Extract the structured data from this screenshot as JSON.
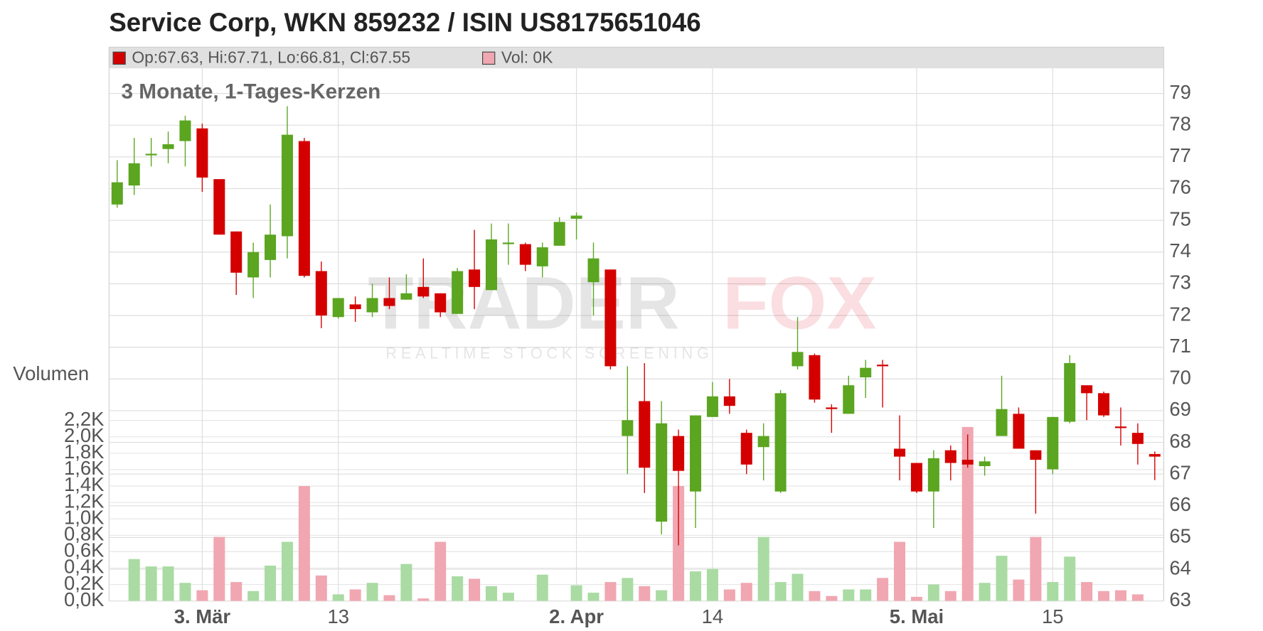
{
  "chart_data": {
    "type": "candlestick",
    "title": "Service Corp, WKN 859232 / ISIN US8175651046",
    "subtitle": "3 Monate, 1-Tages-Kerzen",
    "legend": {
      "ohlc": "Op:67.63, Hi:67.71, Lo:66.81, Cl:67.55",
      "volume": "Vol: 0K"
    },
    "volume_label": "Volumen",
    "watermark": {
      "brand_a": "TRADER",
      "brand_b": "FOX",
      "tagline": "REALTIME STOCK SCREENING"
    },
    "categories": [
      null,
      null,
      null,
      null,
      null,
      "3. Mär",
      null,
      null,
      null,
      null,
      null,
      null,
      null,
      "13",
      null,
      null,
      null,
      null,
      null,
      null,
      null,
      null,
      null,
      null,
      null,
      null,
      null,
      "2. Apr",
      null,
      null,
      null,
      null,
      null,
      null,
      null,
      "14",
      null,
      null,
      null,
      null,
      null,
      null,
      null,
      null,
      null,
      null,
      null,
      "5. Mai",
      null,
      null,
      null,
      null,
      null,
      null,
      null,
      "15",
      null,
      null,
      null,
      null,
      null,
      null
    ],
    "open": [
      75.5,
      76.1,
      77.05,
      77.25,
      77.5,
      77.9,
      76.3,
      74.65,
      73.2,
      73.75,
      74.5,
      77.5,
      73.4,
      71.95,
      72.35,
      72.1,
      72.55,
      72.5,
      72.9,
      72.7,
      72.05,
      73.45,
      72.8,
      74.25,
      74.25,
      73.55,
      74.2,
      75.05,
      73.05,
      73.45,
      68.2,
      69.3,
      65.5,
      68.2,
      66.45,
      68.8,
      69.45,
      68.3,
      67.85,
      66.45,
      70.4,
      70.75,
      69.1,
      68.9,
      70.05,
      70.45,
      67.8,
      67.35,
      66.45,
      67.75,
      67.45,
      67.25,
      68.2,
      68.9,
      67.75,
      67.15,
      68.65,
      69.8,
      69.55,
      68.5,
      68.3,
      67.63
    ],
    "high": [
      76.9,
      77.6,
      77.6,
      77.8,
      78.3,
      78.05,
      76.3,
      74.65,
      74.3,
      75.5,
      78.6,
      77.6,
      73.7,
      72.55,
      72.6,
      73.0,
      73.2,
      73.3,
      73.8,
      72.7,
      73.5,
      74.7,
      74.9,
      74.9,
      74.3,
      74.3,
      75.1,
      75.25,
      74.3,
      73.45,
      70.4,
      70.5,
      69.3,
      68.4,
      68.85,
      69.9,
      70.0,
      68.4,
      68.6,
      69.65,
      71.95,
      70.8,
      69.2,
      70.1,
      70.6,
      70.6,
      68.85,
      67.35,
      67.75,
      67.9,
      68.25,
      67.55,
      70.1,
      69.1,
      67.75,
      68.8,
      70.75,
      69.8,
      69.6,
      69.1,
      68.6,
      67.71
    ],
    "low": [
      75.4,
      75.8,
      76.7,
      76.8,
      76.7,
      75.9,
      74.55,
      72.65,
      72.55,
      73.2,
      73.8,
      73.2,
      71.6,
      71.9,
      71.8,
      71.95,
      72.2,
      72.5,
      72.55,
      71.95,
      72.05,
      72.2,
      72.8,
      73.6,
      73.4,
      73.2,
      74.2,
      74.4,
      72.0,
      70.3,
      67.0,
      66.4,
      65.1,
      64.75,
      65.3,
      68.8,
      68.9,
      67.0,
      66.8,
      66.4,
      70.3,
      69.25,
      68.3,
      68.9,
      69.4,
      69.1,
      66.8,
      66.4,
      65.3,
      66.8,
      67.2,
      66.95,
      68.2,
      67.8,
      65.75,
      67.0,
      68.6,
      68.7,
      68.8,
      67.9,
      67.3,
      66.81
    ],
    "close": [
      76.2,
      76.8,
      77.1,
      77.4,
      78.15,
      76.35,
      74.55,
      73.35,
      74.0,
      74.55,
      77.7,
      73.25,
      72.0,
      72.55,
      72.2,
      72.55,
      72.3,
      72.7,
      72.6,
      72.1,
      73.4,
      72.9,
      74.4,
      74.3,
      73.6,
      74.15,
      74.95,
      75.15,
      73.8,
      70.4,
      68.7,
      67.2,
      68.6,
      67.1,
      68.85,
      69.45,
      69.15,
      67.3,
      68.2,
      69.55,
      70.85,
      69.35,
      69.05,
      69.8,
      70.35,
      70.4,
      67.55,
      66.45,
      67.5,
      67.35,
      67.3,
      67.4,
      69.05,
      67.8,
      67.45,
      68.8,
      70.5,
      69.55,
      68.85,
      68.45,
      67.95,
      67.55
    ],
    "volume": [
      0,
      0.51,
      0.42,
      0.42,
      0.22,
      0.13,
      0.78,
      0.23,
      0.12,
      0.43,
      0.72,
      1.4,
      0.31,
      0.08,
      0.14,
      0.22,
      0.07,
      0.45,
      0.03,
      0.72,
      0.3,
      0.27,
      0.18,
      0.1,
      0,
      0.32,
      0,
      0.19,
      0.1,
      0.23,
      0.28,
      0.18,
      0.13,
      1.4,
      0.36,
      0.39,
      0.14,
      0.22,
      0.78,
      0.23,
      0.33,
      0.12,
      0.06,
      0.14,
      0.14,
      0.28,
      0.72,
      0.05,
      0.2,
      0.12,
      2.12,
      0.22,
      0.55,
      0.26,
      0.78,
      0.23,
      0.54,
      0.23,
      0.12,
      0.13,
      0.08,
      0
    ],
    "ylim": [
      63,
      79
    ],
    "yticks": [
      63,
      64,
      65,
      66,
      67,
      68,
      69,
      70,
      71,
      72,
      73,
      74,
      75,
      76,
      77,
      78,
      79
    ],
    "volume_lim": [
      0,
      2.2
    ],
    "volume_ticks": [
      {
        "value": 0,
        "label": "0,0K"
      },
      {
        "value": 0.2,
        "label": "0,2K"
      },
      {
        "value": 0.4,
        "label": "0,4K"
      },
      {
        "value": 0.6,
        "label": "0,6K"
      },
      {
        "value": 0.8,
        "label": "0,8K"
      },
      {
        "value": 1.0,
        "label": "1,0K"
      },
      {
        "value": 1.2,
        "label": "1,2K"
      },
      {
        "value": 1.4,
        "label": "1,4K"
      },
      {
        "value": 1.6,
        "label": "1,6K"
      },
      {
        "value": 1.8,
        "label": "1,8K"
      },
      {
        "value": 2.0,
        "label": "2,0K"
      },
      {
        "value": 2.2,
        "label": "2,2K"
      }
    ],
    "up_color": "#5ba520",
    "down_color": "#d40000",
    "volume_up_color": "#a9dba3",
    "volume_down_color": "#f0a7b1",
    "grid": true
  }
}
